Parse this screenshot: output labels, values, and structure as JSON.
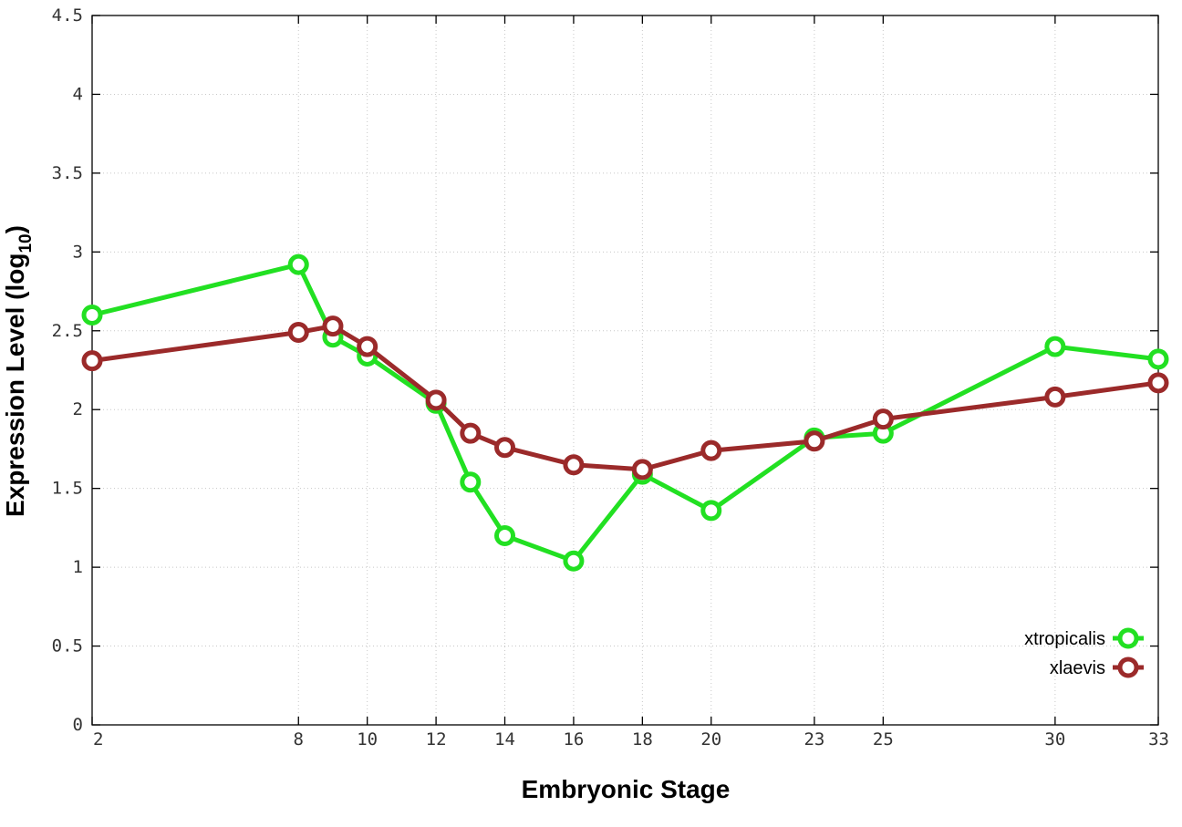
{
  "chart_data": {
    "type": "line",
    "title": "",
    "xlabel": "Embryonic Stage",
    "ylabel_main": "Expression Level (log",
    "ylabel_sub": "10",
    "ylabel_close": ")",
    "x": [
      2,
      8,
      9,
      10,
      12,
      13,
      14,
      16,
      18,
      20,
      23,
      25,
      30,
      33
    ],
    "xticks": [
      2,
      8,
      10,
      12,
      14,
      16,
      18,
      20,
      23,
      25,
      30,
      33
    ],
    "xlim": [
      2,
      33
    ],
    "yticks": [
      "0",
      "0.5",
      "1",
      "1.5",
      "2",
      "2.5",
      "3",
      "3.5",
      "4",
      "4.5"
    ],
    "ylim": [
      0,
      4.5
    ],
    "grid": true,
    "legend_position": "bottom-right",
    "series": [
      {
        "name": "xtropicalis",
        "color": "#22e022",
        "values": [
          2.6,
          2.92,
          2.46,
          2.34,
          2.04,
          1.54,
          1.2,
          1.04,
          1.59,
          1.36,
          1.82,
          1.85,
          2.4,
          2.32
        ]
      },
      {
        "name": "xlaevis",
        "color": "#9b2a2a",
        "values": [
          2.31,
          2.49,
          2.53,
          2.4,
          2.06,
          1.85,
          1.76,
          1.65,
          1.62,
          1.74,
          1.8,
          1.94,
          2.08,
          2.17
        ]
      }
    ]
  }
}
